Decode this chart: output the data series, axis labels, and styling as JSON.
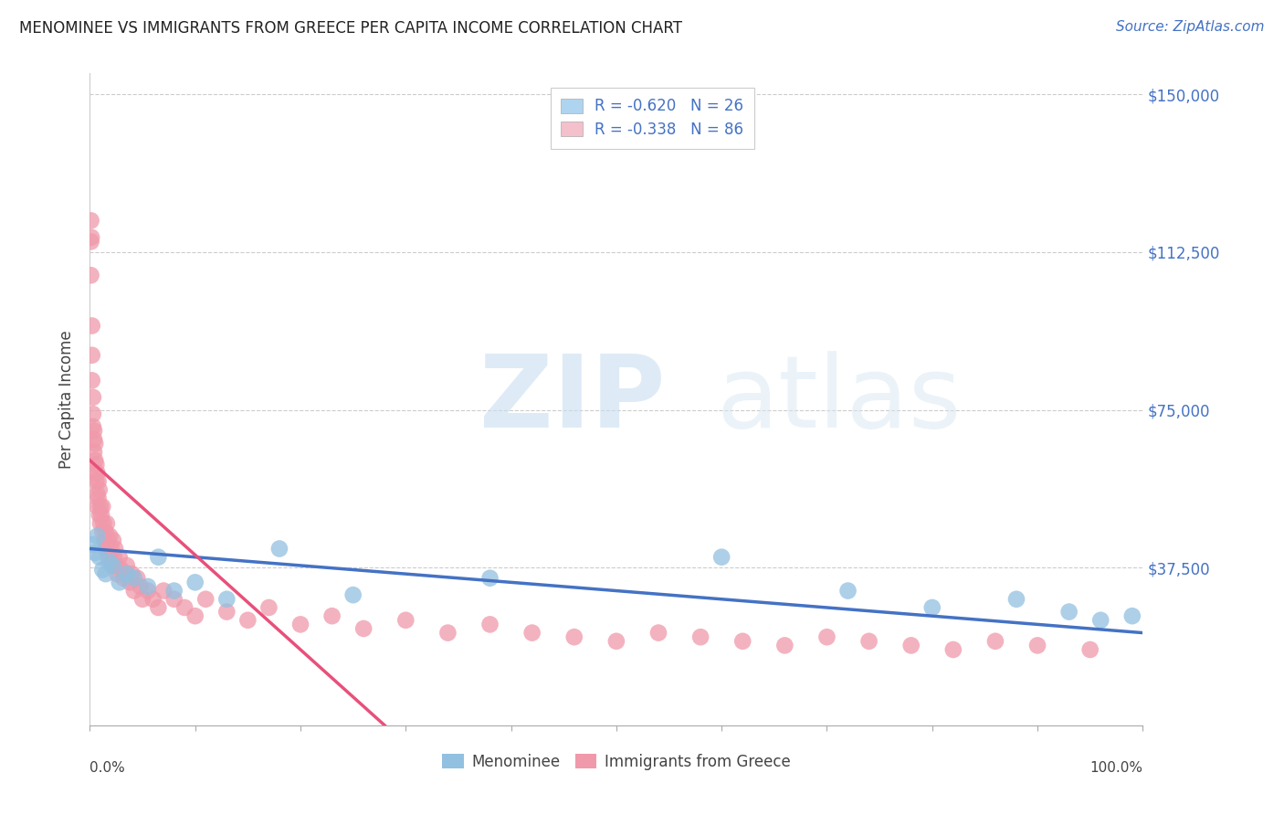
{
  "title": "MENOMINEE VS IMMIGRANTS FROM GREECE PER CAPITA INCOME CORRELATION CHART",
  "source": "Source: ZipAtlas.com",
  "ylabel": "Per Capita Income",
  "yticks": [
    0,
    37500,
    75000,
    112500,
    150000
  ],
  "ytick_labels": [
    "",
    "$37,500",
    "$75,000",
    "$112,500",
    "$150,000"
  ],
  "xlim": [
    0,
    1.0
  ],
  "ylim": [
    0,
    155000
  ],
  "legend_R1": "R = -0.620",
  "legend_N1": "N = 26",
  "legend_R2": "R = -0.338",
  "legend_N2": "N = 86",
  "legend_labels_bottom": [
    "Menominee",
    "Immigrants from Greece"
  ],
  "menominee_color": "#92c0e0",
  "greece_color": "#f099aa",
  "trend_menominee_color": "#4472c4",
  "trend_greece_color": "#e8507a",
  "legend_blue_patch": "#aed4f0",
  "legend_pink_patch": "#f4c0cc",
  "menominee_scatter_x": [
    0.003,
    0.005,
    0.007,
    0.009,
    0.012,
    0.015,
    0.018,
    0.022,
    0.028,
    0.035,
    0.042,
    0.055,
    0.065,
    0.08,
    0.1,
    0.13,
    0.18,
    0.25,
    0.38,
    0.6,
    0.72,
    0.8,
    0.88,
    0.93,
    0.96,
    0.99
  ],
  "menominee_scatter_y": [
    43000,
    41000,
    45000,
    40000,
    37000,
    36000,
    39000,
    38000,
    34000,
    36000,
    35000,
    33000,
    40000,
    32000,
    34000,
    30000,
    42000,
    31000,
    35000,
    40000,
    32000,
    28000,
    30000,
    27000,
    25000,
    26000
  ],
  "greece_scatter_x": [
    0.001,
    0.001,
    0.001,
    0.0015,
    0.002,
    0.002,
    0.002,
    0.003,
    0.003,
    0.003,
    0.004,
    0.004,
    0.004,
    0.005,
    0.005,
    0.005,
    0.006,
    0.006,
    0.007,
    0.007,
    0.007,
    0.008,
    0.008,
    0.009,
    0.009,
    0.01,
    0.01,
    0.011,
    0.012,
    0.012,
    0.013,
    0.014,
    0.015,
    0.015,
    0.016,
    0.017,
    0.018,
    0.019,
    0.02,
    0.021,
    0.022,
    0.023,
    0.024,
    0.025,
    0.026,
    0.028,
    0.03,
    0.032,
    0.035,
    0.038,
    0.04,
    0.042,
    0.045,
    0.048,
    0.05,
    0.055,
    0.06,
    0.065,
    0.07,
    0.08,
    0.09,
    0.1,
    0.11,
    0.13,
    0.15,
    0.17,
    0.2,
    0.23,
    0.26,
    0.3,
    0.34,
    0.38,
    0.42,
    0.46,
    0.5,
    0.54,
    0.58,
    0.62,
    0.66,
    0.7,
    0.74,
    0.78,
    0.82,
    0.86,
    0.9,
    0.95
  ],
  "greece_scatter_y": [
    120000,
    115000,
    107000,
    116000,
    95000,
    88000,
    82000,
    78000,
    74000,
    71000,
    68000,
    65000,
    70000,
    63000,
    60000,
    67000,
    58000,
    62000,
    55000,
    60000,
    52000,
    58000,
    54000,
    56000,
    50000,
    52000,
    48000,
    50000,
    46000,
    52000,
    48000,
    44000,
    46000,
    42000,
    48000,
    44000,
    40000,
    45000,
    42000,
    38000,
    44000,
    40000,
    42000,
    38000,
    36000,
    40000,
    37000,
    35000,
    38000,
    34000,
    36000,
    32000,
    35000,
    33000,
    30000,
    32000,
    30000,
    28000,
    32000,
    30000,
    28000,
    26000,
    30000,
    27000,
    25000,
    28000,
    24000,
    26000,
    23000,
    25000,
    22000,
    24000,
    22000,
    21000,
    20000,
    22000,
    21000,
    20000,
    19000,
    21000,
    20000,
    19000,
    18000,
    20000,
    19000,
    18000
  ],
  "men_trend_x0": 0.0,
  "men_trend_x1": 1.0,
  "men_trend_y0": 42000,
  "men_trend_y1": 22000,
  "grc_trend_x0": 0.0,
  "grc_trend_x1": 0.28,
  "grc_trend_y0": 63000,
  "grc_trend_y1": 0
}
